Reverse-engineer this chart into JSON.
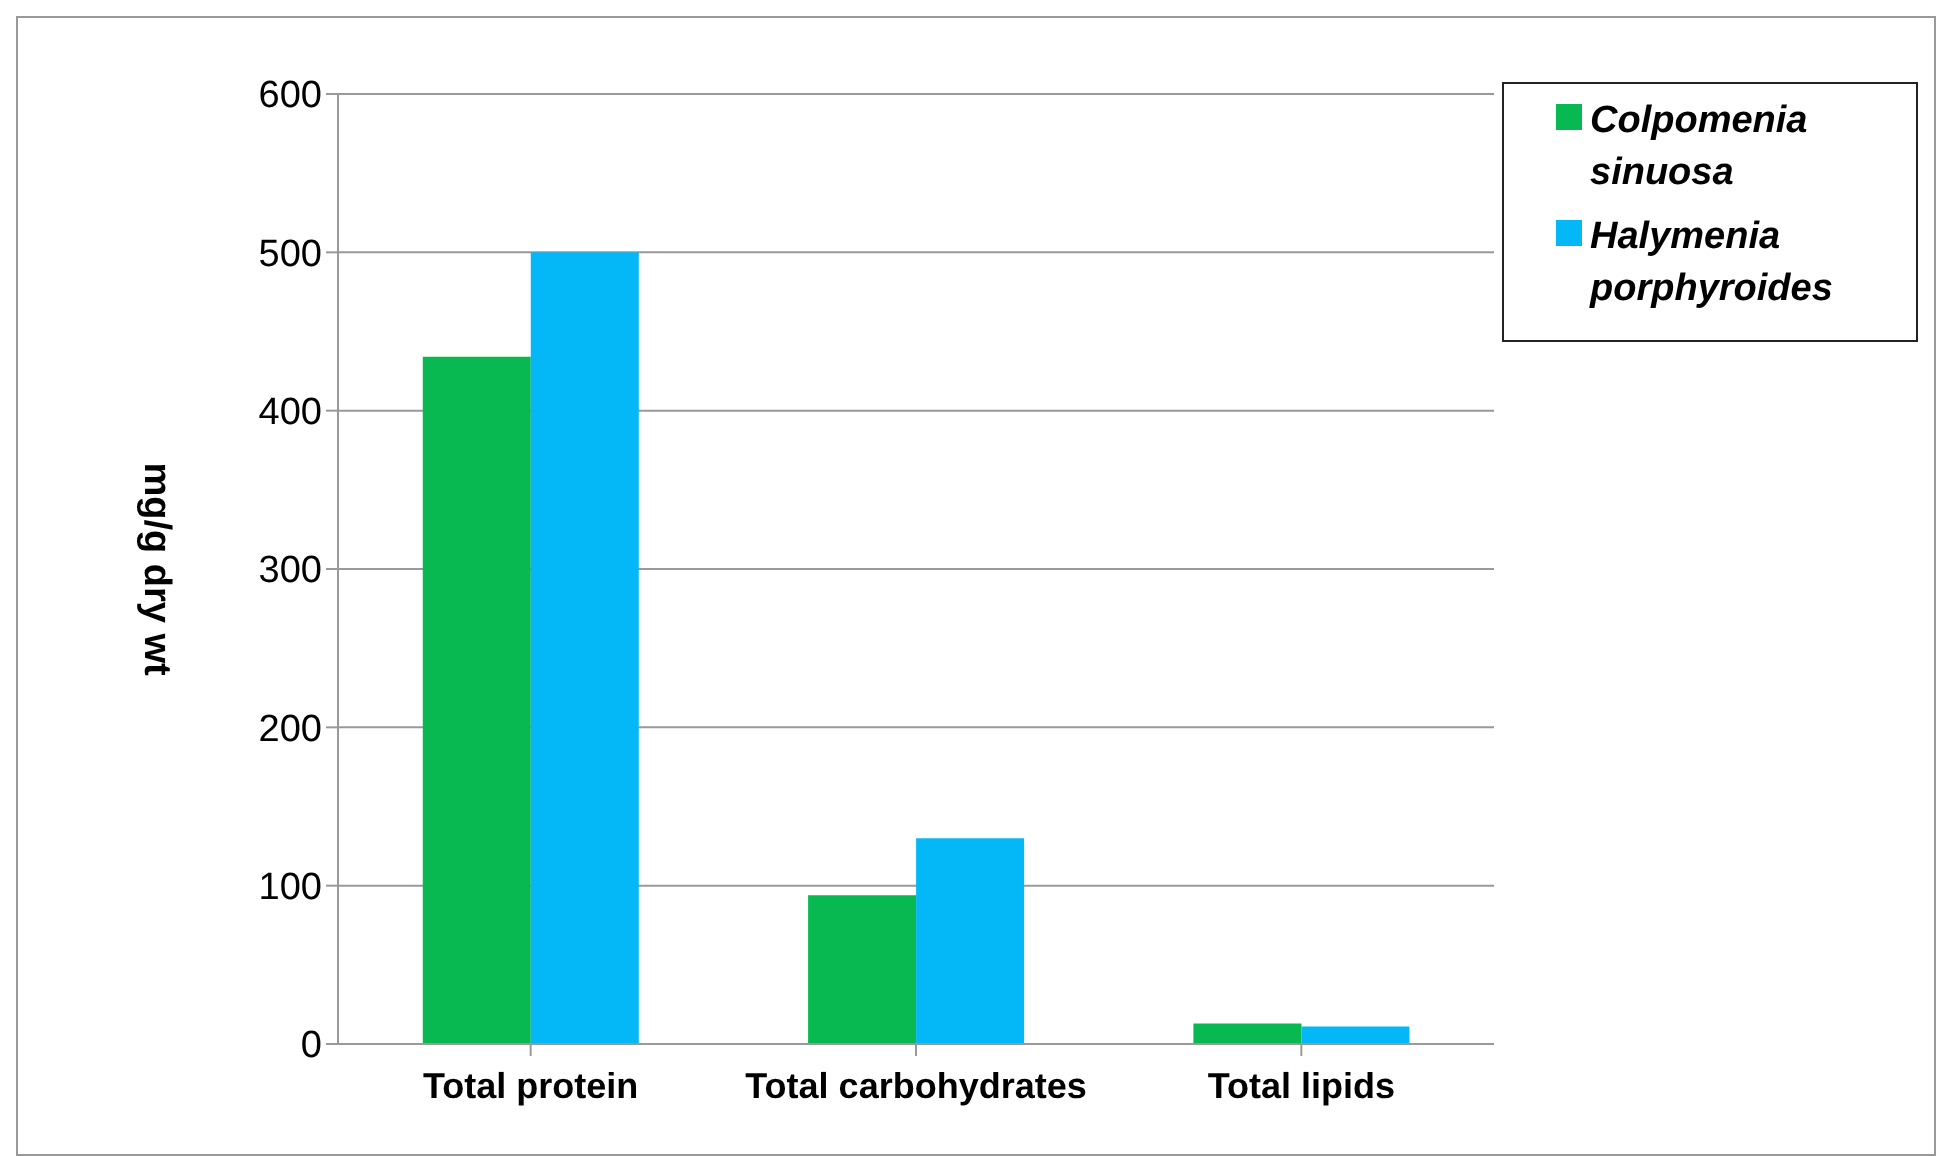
{
  "chart_data": {
    "type": "bar",
    "categories": [
      "Total protein",
      "Total carbohydrates",
      "Total lipids"
    ],
    "ylabel": "mg/g dry wt",
    "series": [
      {
        "name": "Colpomenia sinuosa",
        "color": "#08b850",
        "values": [
          434,
          94,
          13
        ]
      },
      {
        "name": "Halymenia porphyroides",
        "color": "#04b8f8",
        "values": [
          500,
          130,
          11
        ]
      }
    ],
    "ylim": [
      0,
      600
    ],
    "yticks": [
      0,
      100,
      200,
      300,
      400,
      500,
      600
    ],
    "grid": "y",
    "legend": "top right"
  }
}
